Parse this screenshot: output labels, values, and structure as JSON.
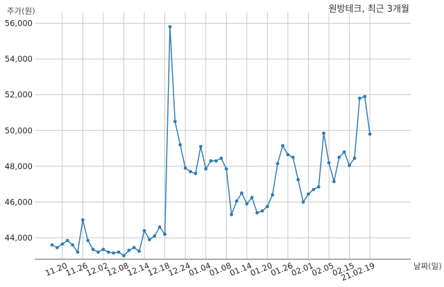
{
  "chart_data": {
    "type": "line",
    "title": "원방테크, 최근 3개월",
    "ylabel": "주가(원)",
    "xlabel": "날짜(일)",
    "ylim": [
      42800,
      56600
    ],
    "grid": true,
    "y_ticks": [
      44000,
      46000,
      48000,
      50000,
      52000,
      54000,
      56000
    ],
    "y_tick_labels": [
      "44,000",
      "46,000",
      "48,000",
      "50,000",
      "52,000",
      "54,000",
      "56,000"
    ],
    "x_tick_labels": [
      "11.20",
      "11.26",
      "12.02",
      "12.08",
      "12.14",
      "12.18",
      "12.24",
      "01.04",
      "01.08",
      "01.14",
      "01.20",
      "01.26",
      "02.01",
      "02.05",
      "02.15",
      "21.02.19"
    ],
    "x_tick_index": [
      2,
      6,
      10,
      14,
      18,
      22,
      26,
      30,
      34,
      38,
      42,
      46,
      50,
      54,
      58,
      62
    ],
    "line_color": "#2e7bb4",
    "series": [
      {
        "values": [
          43600,
          43450,
          43650,
          43850,
          43600,
          43200,
          45000,
          43850,
          43350,
          43200,
          43350,
          43200,
          43150,
          43200,
          43000,
          43300,
          43450,
          43250,
          44400,
          43900,
          44100,
          44600,
          44200,
          55800,
          50500,
          49200,
          47900,
          47700,
          47600,
          49100,
          47850,
          48300,
          48300,
          48450,
          47850,
          45300,
          46050,
          46500,
          45900,
          46250,
          45400,
          45500,
          45750,
          46400,
          48150,
          49150,
          48650,
          48500,
          47250,
          46000,
          46450,
          46700,
          46850,
          49850,
          48200,
          47150,
          48500,
          48800,
          48050,
          48450,
          51800,
          51900,
          49800
        ]
      }
    ]
  }
}
